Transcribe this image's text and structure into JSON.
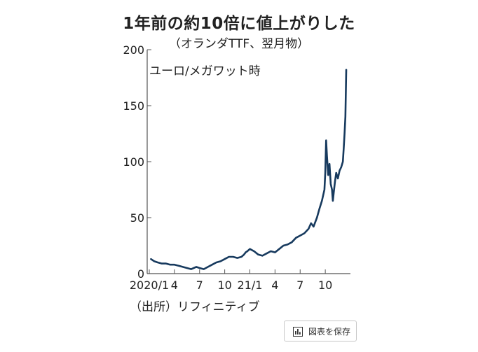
{
  "header": {
    "title": "1年前の約10倍に値上がりした",
    "subtitle": "（オランダTTF、翌月物）"
  },
  "source": "（出所）リフィニティブ",
  "save_button": {
    "label": "図表を保存",
    "icon": "bar-chart-icon"
  },
  "colors": {
    "line": "#173a5e",
    "axis": "#555555",
    "text": "#222222"
  },
  "chart_data": {
    "type": "line",
    "unit_label": "ユーロ/メガワット時",
    "ylim": [
      0,
      200
    ],
    "yticks": [
      0,
      50,
      100,
      150,
      200
    ],
    "xlim": [
      0,
      24
    ],
    "xticks": [
      {
        "x": 0,
        "label": "2020/1"
      },
      {
        "x": 3,
        "label": "4"
      },
      {
        "x": 6,
        "label": "7"
      },
      {
        "x": 9,
        "label": "10"
      },
      {
        "x": 12,
        "label": "21/1"
      },
      {
        "x": 15,
        "label": "4"
      },
      {
        "x": 18,
        "label": "7"
      },
      {
        "x": 21,
        "label": "10"
      }
    ],
    "grid": false,
    "series": [
      {
        "x": [
          0.2,
          0.6,
          1.0,
          1.5,
          2.0,
          2.5,
          3.0,
          3.5,
          4.0,
          4.5,
          5.0,
          5.3,
          5.6,
          6.0,
          6.5,
          7.0,
          7.5,
          8.0,
          8.5,
          9.0,
          9.5,
          10.0,
          10.5,
          11.0,
          11.3,
          11.5,
          11.7,
          12.0,
          12.5,
          13.0,
          13.5,
          14.0,
          14.5,
          15.0,
          15.5,
          16.0,
          16.5,
          17.0,
          17.5,
          18.0,
          18.5,
          19.0,
          19.3,
          19.6,
          20.0,
          20.3,
          20.6,
          20.9,
          21.0,
          21.1,
          21.2,
          21.35,
          21.5,
          21.65,
          21.8,
          21.9,
          22.0,
          22.15,
          22.3,
          22.5,
          22.7,
          22.9,
          23.1,
          23.2,
          23.3,
          23.4,
          23.5
        ],
        "y": [
          13,
          11,
          10,
          9,
          9,
          8,
          8,
          7,
          6,
          5,
          4,
          5,
          6,
          5,
          4,
          6,
          8,
          10,
          11,
          13,
          15,
          15,
          14,
          15,
          17,
          19,
          20,
          22,
          20,
          17,
          16,
          18,
          20,
          19,
          22,
          25,
          26,
          28,
          32,
          34,
          36,
          40,
          45,
          42,
          50,
          58,
          65,
          75,
          90,
          119,
          105,
          88,
          98,
          80,
          75,
          65,
          72,
          82,
          90,
          85,
          92,
          95,
          100,
          112,
          125,
          140,
          182
        ]
      }
    ]
  }
}
